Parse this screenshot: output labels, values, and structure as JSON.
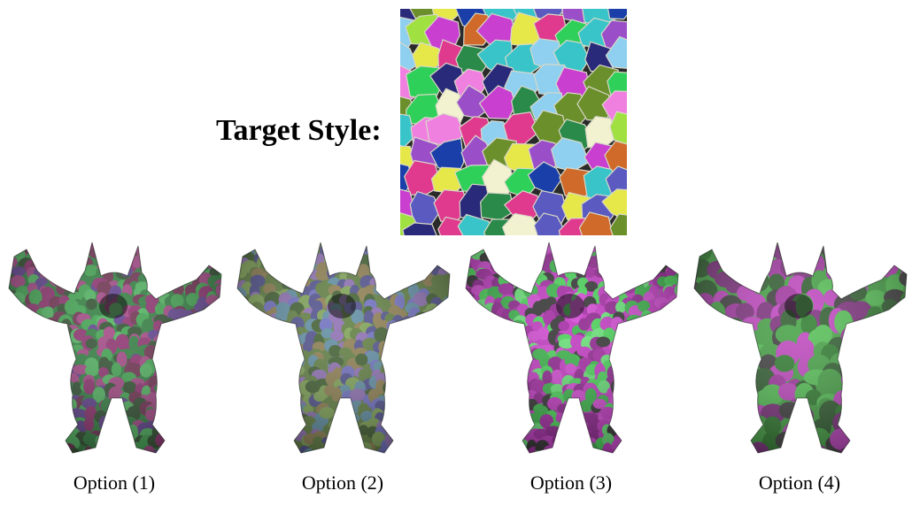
{
  "target": {
    "label": "Target Style:",
    "palette": [
      "#1a3fa8",
      "#2fd05a",
      "#c93fd0",
      "#9a4fc9",
      "#e6e84a",
      "#39c4c9",
      "#e03a8f",
      "#6b8f2a",
      "#f2f2d0",
      "#2a2a7a",
      "#8fd0f0",
      "#d06a2a",
      "#a0e040",
      "#5a5ac0",
      "#f080e0",
      "#2a8a4a"
    ]
  },
  "options": [
    {
      "caption": "Option (1)",
      "palette": [
        "#2a7a3a",
        "#8a2a6a",
        "#3aa04a",
        "#5a3a8a",
        "#2a4a2a",
        "#a04080",
        "#4ab05a",
        "#6a2a4a"
      ]
    },
    {
      "caption": "Option (2)",
      "palette": [
        "#5a7a3a",
        "#6a6ac0",
        "#7aa050",
        "#4a4a8a",
        "#8a7a4a",
        "#5a8aa0",
        "#3a5a2a",
        "#8a6ab0"
      ]
    },
    {
      "caption": "Option (3)",
      "palette": [
        "#c030c0",
        "#40d050",
        "#a020a0",
        "#30b040",
        "#d040d0",
        "#2a2a2a",
        "#60e070",
        "#8a1a8a"
      ]
    },
    {
      "caption": "Option (4)",
      "palette": [
        "#40a040",
        "#a030a0",
        "#2a7a2a",
        "#c040c0",
        "#3a3a3a",
        "#50c050",
        "#7a2a7a",
        "#2a5a2a"
      ]
    }
  ]
}
